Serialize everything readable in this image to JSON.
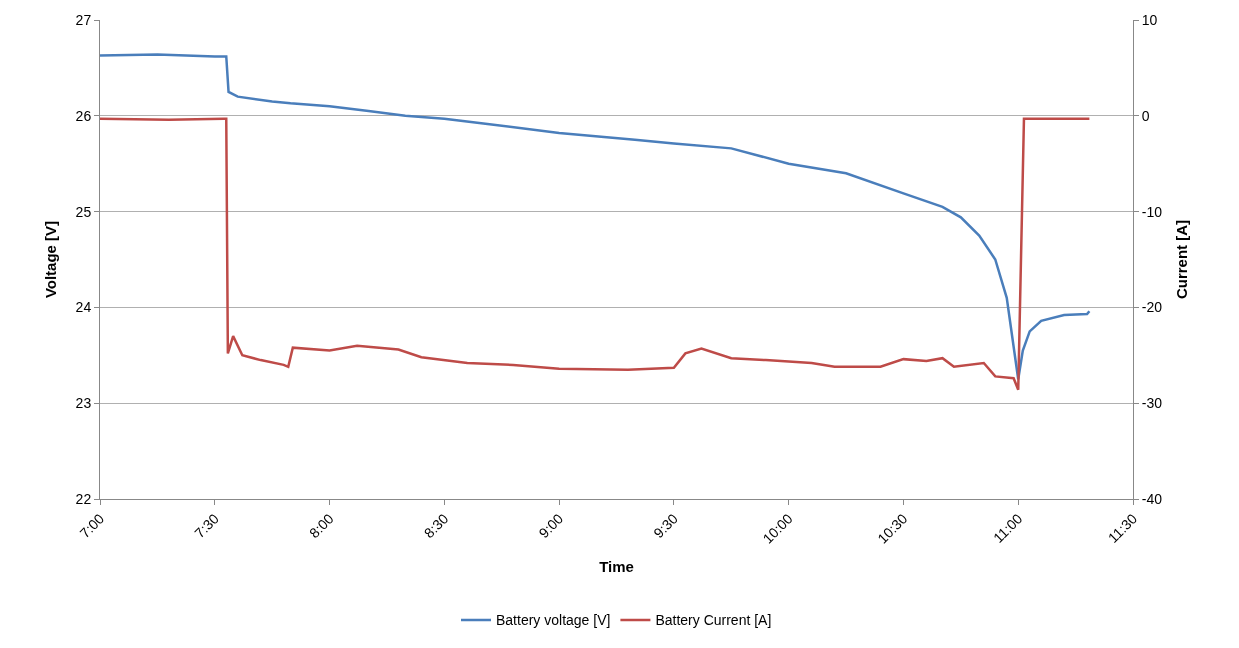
{
  "chart_data": {
    "type": "line",
    "xlabel": "Time",
    "ylabel": "Voltage [V]",
    "y2label": "Current [A]",
    "xlim": [
      7,
      11.5
    ],
    "xticks": [
      {
        "value": 7,
        "label": "7:00"
      },
      {
        "value": 7.5,
        "label": "7:30"
      },
      {
        "value": 8,
        "label": "8:00"
      },
      {
        "value": 8.5,
        "label": "8:30"
      },
      {
        "value": 9,
        "label": "9:00"
      },
      {
        "value": 9.5,
        "label": "9:30"
      },
      {
        "value": 10,
        "label": "10:00"
      },
      {
        "value": 10.5,
        "label": "10:30"
      },
      {
        "value": 11,
        "label": "11:00"
      },
      {
        "value": 11.5,
        "label": "11:30"
      }
    ],
    "ylim": [
      22,
      27
    ],
    "yticks": [
      22,
      23,
      24,
      25,
      26,
      27
    ],
    "y2lim": [
      -40,
      10
    ],
    "y2ticks": [
      -40,
      -30,
      -20,
      -10,
      0,
      10
    ],
    "grid": "y",
    "legend": "bottom",
    "marker": "none",
    "line_style": "solid",
    "series": [
      {
        "name": "Battery voltage [V]",
        "color": "#4a7ebb",
        "x": [
          7.0,
          7.25,
          7.5,
          7.55,
          7.56,
          7.6,
          7.75,
          7.83,
          8.0,
          8.17,
          8.33,
          8.5,
          8.67,
          9.0,
          9.33,
          9.5,
          9.75,
          10.0,
          10.25,
          10.5,
          10.67,
          10.75,
          10.83,
          10.9,
          10.95,
          11.0,
          11.02,
          11.05,
          11.1,
          11.2,
          11.3,
          11.31
        ],
        "values": [
          26.63,
          26.64,
          26.62,
          26.62,
          26.25,
          26.2,
          26.15,
          26.13,
          26.1,
          26.05,
          26.0,
          25.97,
          25.92,
          25.82,
          25.75,
          25.71,
          25.66,
          25.5,
          25.4,
          25.19,
          25.05,
          24.94,
          24.75,
          24.5,
          24.1,
          23.25,
          23.55,
          23.75,
          23.86,
          23.92,
          23.93,
          23.96
        ]
      },
      {
        "name": "Battery Current [A]",
        "color": "#be4b48",
        "axis": "y2",
        "x": [
          7.0,
          7.3,
          7.54,
          7.55,
          7.557,
          7.58,
          7.62,
          7.7,
          7.8,
          7.82,
          7.84,
          8.0,
          8.12,
          8.3,
          8.4,
          8.6,
          8.8,
          9.0,
          9.3,
          9.5,
          9.55,
          9.62,
          9.75,
          9.9,
          10.1,
          10.2,
          10.4,
          10.5,
          10.6,
          10.67,
          10.72,
          10.85,
          10.9,
          10.98,
          11.0,
          11.025,
          11.31
        ],
        "values": [
          -0.3,
          -0.4,
          -0.3,
          -0.3,
          -24.8,
          -23.0,
          -25.0,
          -25.5,
          -26.0,
          -26.2,
          -24.2,
          -24.5,
          -24.0,
          -24.4,
          -25.2,
          -25.8,
          -26.0,
          -26.4,
          -26.5,
          -26.3,
          -24.8,
          -24.3,
          -25.3,
          -25.5,
          -25.8,
          -26.2,
          -26.2,
          -25.4,
          -25.6,
          -25.3,
          -26.2,
          -25.8,
          -27.2,
          -27.4,
          -28.6,
          -0.3,
          -0.3
        ]
      }
    ]
  }
}
